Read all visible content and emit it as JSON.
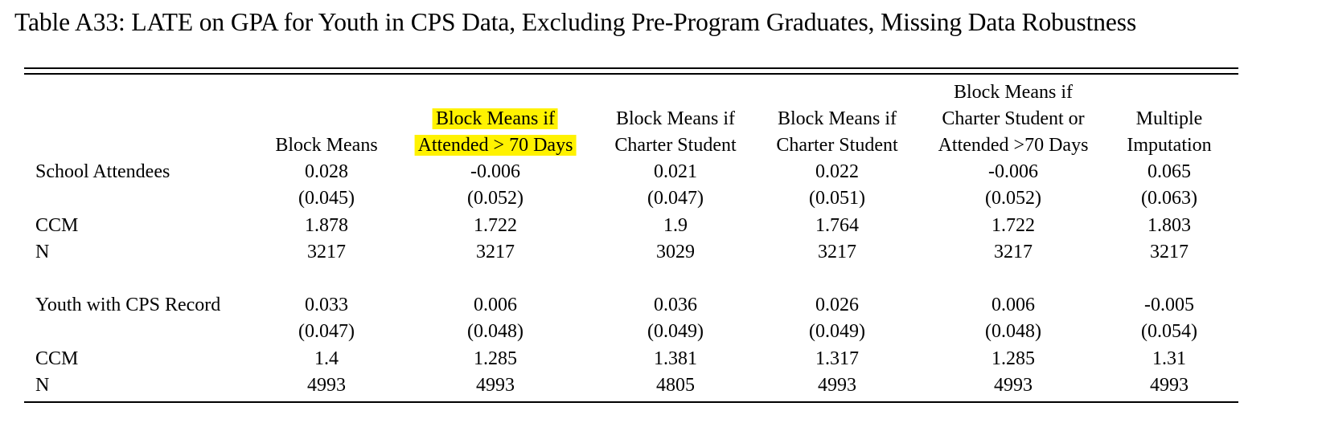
{
  "caption": "Table A33: LATE on GPA for Youth in CPS Data, Excluding Pre-Program Graduates, Missing Data Robustness",
  "columns": [
    {
      "lines": [
        "Block Means"
      ],
      "highlighted": false
    },
    {
      "lines": [
        "Block Means if",
        "Attended > 70 Days"
      ],
      "highlighted": true
    },
    {
      "lines": [
        "Block Means if",
        "Charter Student"
      ],
      "highlighted": false
    },
    {
      "lines": [
        "Block Means if",
        "Charter Student"
      ],
      "highlighted": false
    },
    {
      "lines": [
        "Block Means if",
        "Charter Student or",
        "Attended >70 Days"
      ],
      "highlighted": false
    },
    {
      "lines": [
        "Multiple",
        "Imputation"
      ],
      "highlighted": false
    }
  ],
  "panels": [
    {
      "rows": [
        {
          "label": "School Attendees",
          "values": [
            "0.028",
            "-0.006",
            "0.021",
            "0.022",
            "-0.006",
            "0.065"
          ]
        },
        {
          "label": "",
          "values": [
            "(0.045)",
            "(0.052)",
            "(0.047)",
            "(0.051)",
            "(0.052)",
            "(0.063)"
          ]
        },
        {
          "label": "CCM",
          "values": [
            "1.878",
            "1.722",
            "1.9",
            "1.764",
            "1.722",
            "1.803"
          ]
        },
        {
          "label": "N",
          "values": [
            "3217",
            "3217",
            "3029",
            "3217",
            "3217",
            "3217"
          ]
        }
      ]
    },
    {
      "rows": [
        {
          "label": "Youth with CPS Record",
          "values": [
            "0.033",
            "0.006",
            "0.036",
            "0.026",
            "0.006",
            "-0.005"
          ]
        },
        {
          "label": "",
          "values": [
            "(0.047)",
            "(0.048)",
            "(0.049)",
            "(0.049)",
            "(0.048)",
            "(0.054)"
          ]
        },
        {
          "label": "CCM",
          "values": [
            "1.4",
            "1.285",
            "1.381",
            "1.317",
            "1.285",
            "1.31"
          ]
        },
        {
          "label": "N",
          "values": [
            "4993",
            "4993",
            "4805",
            "4993",
            "4993",
            "4993"
          ]
        }
      ]
    }
  ]
}
